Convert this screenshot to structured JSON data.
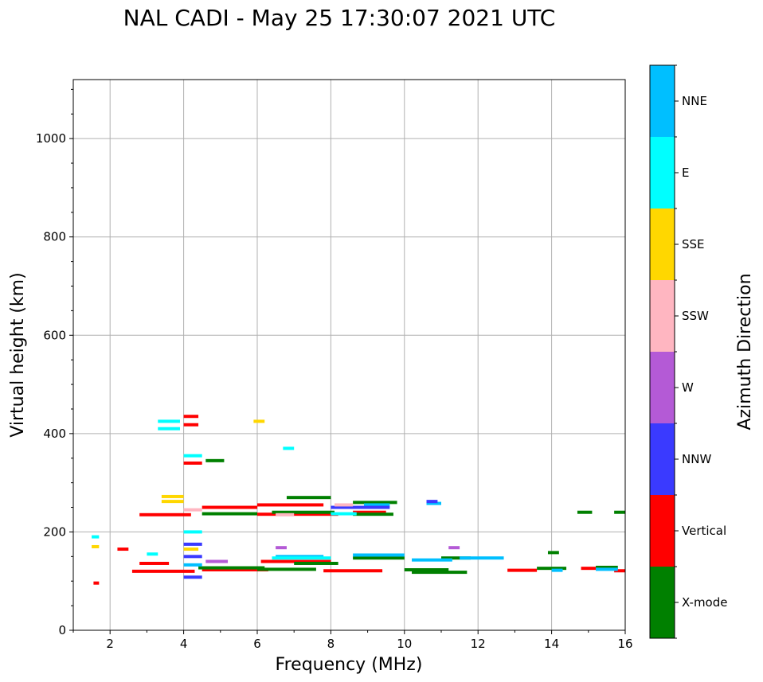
{
  "chart_data": {
    "type": "scatter",
    "title": "NAL CADI - May 25 17:30:07 2021 UTC",
    "xlabel": "Frequency (MHz)",
    "ylabel": "Virtual height (km)",
    "xlim": [
      1,
      16
    ],
    "ylim": [
      0,
      1120
    ],
    "xticks": [
      2,
      4,
      6,
      8,
      10,
      12,
      14,
      16
    ],
    "yticks": [
      0,
      200,
      400,
      600,
      800,
      1000
    ],
    "grid": true,
    "colorbar": {
      "label": "Azimuth Direction",
      "categories": [
        {
          "name": "X-mode",
          "color": "#008000"
        },
        {
          "name": "Vertical",
          "color": "#ff0000"
        },
        {
          "name": "NNW",
          "color": "#3a3aff"
        },
        {
          "name": "W",
          "color": "#b45ad6"
        },
        {
          "name": "SSW",
          "color": "#ffb6c1"
        },
        {
          "name": "SSE",
          "color": "#ffd700"
        },
        {
          "name": "E",
          "color": "#00ffff"
        },
        {
          "name": "NNE",
          "color": "#00bfff"
        }
      ]
    },
    "series": [
      {
        "name": "Vertical",
        "traces": [
          {
            "x": [
              2.6,
              4.3
            ],
            "y": 120
          },
          {
            "x": [
              4.5,
              6.3
            ],
            "y": 123
          },
          {
            "x": [
              7.8,
              9.4
            ],
            "y": 121
          },
          {
            "x": [
              12.8,
              13.6
            ],
            "y": 122
          },
          {
            "x": [
              14.8,
              15.2
            ],
            "y": 126
          },
          {
            "x": [
              15.7,
              16
            ],
            "y": 121
          },
          {
            "x": [
              2.8,
              3.6
            ],
            "y": 136
          },
          {
            "x": [
              6.1,
              8.0
            ],
            "y": 140
          },
          {
            "x": [
              2.8,
              4.2
            ],
            "y": 235
          },
          {
            "x": [
              4.5,
              6.0
            ],
            "y": 250
          },
          {
            "x": [
              6.0,
              8.2
            ],
            "y": 236
          },
          {
            "x": [
              8.6,
              9.5
            ],
            "y": 240
          },
          {
            "x": [
              6.0,
              7.8
            ],
            "y": 255
          },
          {
            "x": [
              4.0,
              4.4
            ],
            "y": 418
          },
          {
            "x": [
              4.0,
              4.4
            ],
            "y": 435
          },
          {
            "x": [
              4.0,
              4.5
            ],
            "y": 340
          },
          {
            "x": [
              1.55,
              1.7
            ],
            "y": 96
          },
          {
            "x": [
              2.2,
              2.5
            ],
            "y": 165
          }
        ]
      },
      {
        "name": "X-mode",
        "traces": [
          {
            "x": [
              4.4,
              6.2
            ],
            "y": 127
          },
          {
            "x": [
              6.0,
              7.6
            ],
            "y": 124
          },
          {
            "x": [
              10.2,
              11.7
            ],
            "y": 118
          },
          {
            "x": [
              10.0,
              11.2
            ],
            "y": 123
          },
          {
            "x": [
              13.6,
              14.4
            ],
            "y": 126
          },
          {
            "x": [
              15.2,
              15.8
            ],
            "y": 128
          },
          {
            "x": [
              7.0,
              8.2
            ],
            "y": 136
          },
          {
            "x": [
              8.6,
              10.0
            ],
            "y": 147
          },
          {
            "x": [
              4.5,
              6.0
            ],
            "y": 237
          },
          {
            "x": [
              6.4,
              8.1
            ],
            "y": 240
          },
          {
            "x": [
              8.6,
              9.7
            ],
            "y": 236
          },
          {
            "x": [
              8.6,
              9.8
            ],
            "y": 260
          },
          {
            "x": [
              6.8,
              8.0
            ],
            "y": 270
          },
          {
            "x": [
              4.6,
              5.1
            ],
            "y": 345
          },
          {
            "x": [
              15.7,
              16
            ],
            "y": 240
          },
          {
            "x": [
              14.7,
              15.1
            ],
            "y": 240
          },
          {
            "x": [
              13.9,
              14.2
            ],
            "y": 158
          },
          {
            "x": [
              11.0,
              11.8
            ],
            "y": 147
          }
        ]
      },
      {
        "name": "NNE",
        "traces": [
          {
            "x": [
              11.5,
              12.7
            ],
            "y": 147
          },
          {
            "x": [
              10.2,
              11.3
            ],
            "y": 143
          },
          {
            "x": [
              8.6,
              10.0
            ],
            "y": 153
          },
          {
            "x": [
              6.5,
              7.8
            ],
            "y": 150
          },
          {
            "x": [
              4.0,
              4.5
            ],
            "y": 133
          },
          {
            "x": [
              8.9,
              9.6
            ],
            "y": 255
          },
          {
            "x": [
              14.0,
              14.3
            ],
            "y": 122
          },
          {
            "x": [
              15.2,
              15.8
            ],
            "y": 124
          },
          {
            "x": [
              10.6,
              11.0
            ],
            "y": 258
          }
        ]
      },
      {
        "name": "E",
        "traces": [
          {
            "x": [
              3.3,
              3.9
            ],
            "y": 410
          },
          {
            "x": [
              3.3,
              3.9
            ],
            "y": 425
          },
          {
            "x": [
              4.0,
              4.5
            ],
            "y": 355
          },
          {
            "x": [
              8.0,
              8.7
            ],
            "y": 237
          },
          {
            "x": [
              6.4,
              8.0
            ],
            "y": 147
          },
          {
            "x": [
              1.5,
              1.7
            ],
            "y": 190
          },
          {
            "x": [
              6.7,
              7.0
            ],
            "y": 370
          },
          {
            "x": [
              3.0,
              3.3
            ],
            "y": 155
          },
          {
            "x": [
              4.0,
              4.5
            ],
            "y": 200
          }
        ]
      },
      {
        "name": "NNW",
        "traces": [
          {
            "x": [
              4.0,
              4.5
            ],
            "y": 175
          },
          {
            "x": [
              4.0,
              4.5
            ],
            "y": 150
          },
          {
            "x": [
              4.0,
              4.5
            ],
            "y": 108
          },
          {
            "x": [
              8.0,
              9.6
            ],
            "y": 250
          },
          {
            "x": [
              10.6,
              10.9
            ],
            "y": 262
          }
        ]
      },
      {
        "name": "W",
        "traces": [
          {
            "x": [
              6.5,
              6.8
            ],
            "y": 168
          },
          {
            "x": [
              11.2,
              11.5
            ],
            "y": 168
          },
          {
            "x": [
              4.6,
              5.2
            ],
            "y": 140
          }
        ]
      },
      {
        "name": "SSW",
        "traces": [
          {
            "x": [
              8.1,
              8.6
            ],
            "y": 255
          },
          {
            "x": [
              4.0,
              4.5
            ],
            "y": 245
          },
          {
            "x": [
              6.5,
              7.0
            ],
            "y": 235
          }
        ]
      },
      {
        "name": "SSE",
        "traces": [
          {
            "x": [
              3.4,
              4.0
            ],
            "y": 262
          },
          {
            "x": [
              3.4,
              4.0
            ],
            "y": 272
          },
          {
            "x": [
              4.0,
              4.4
            ],
            "y": 165
          },
          {
            "x": [
              1.5,
              1.7
            ],
            "y": 170
          },
          {
            "x": [
              5.9,
              6.2
            ],
            "y": 425
          }
        ]
      }
    ]
  }
}
